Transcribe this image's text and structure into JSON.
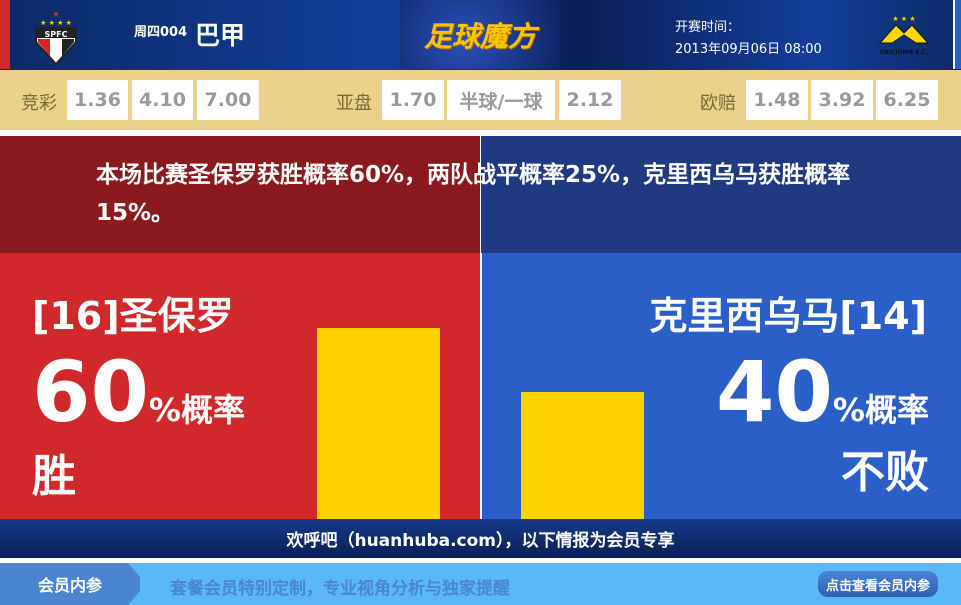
{
  "header": {
    "home_logo_text": "SPFC",
    "match_no": "周四004",
    "league": "巴甲",
    "brand": "足球魔方",
    "kickoff_label": "开赛时间：",
    "kickoff_time": "2013年09月06日 08:00",
    "away_logo_text": "CRICIUMA E.C."
  },
  "odds": {
    "jingcai": {
      "label": "竞彩",
      "values": [
        "1.36",
        "4.10",
        "7.00"
      ]
    },
    "yapan": {
      "label": "亚盘",
      "values": [
        "1.70",
        "半球/一球",
        "2.12"
      ]
    },
    "oupei": {
      "label": "欧赔",
      "values": [
        "1.48",
        "3.92",
        "6.25"
      ]
    }
  },
  "prediction": {
    "text": "本场比赛圣保罗获胜概率60%，两队战平概率25%，克里西乌马获胜概率15%。"
  },
  "home": {
    "team": "[16]圣保罗",
    "percent": "60",
    "unit": "%概率",
    "result": "胜",
    "bar_value": 60,
    "color": "#d0282b"
  },
  "away": {
    "team": "克里西乌马[14]",
    "percent": "40",
    "unit": "%概率",
    "result": "不败",
    "bar_value": 40,
    "color": "#2a5fc8"
  },
  "bar_color": "#ffd200",
  "footer": {
    "text": "欢呼吧（huanhuba.com），以下情报为会员专享"
  },
  "member": {
    "tag": "会员内参",
    "text": "套餐会员特别定制，专业视角分析与独家提醒",
    "button": "点击查看会员内参"
  }
}
